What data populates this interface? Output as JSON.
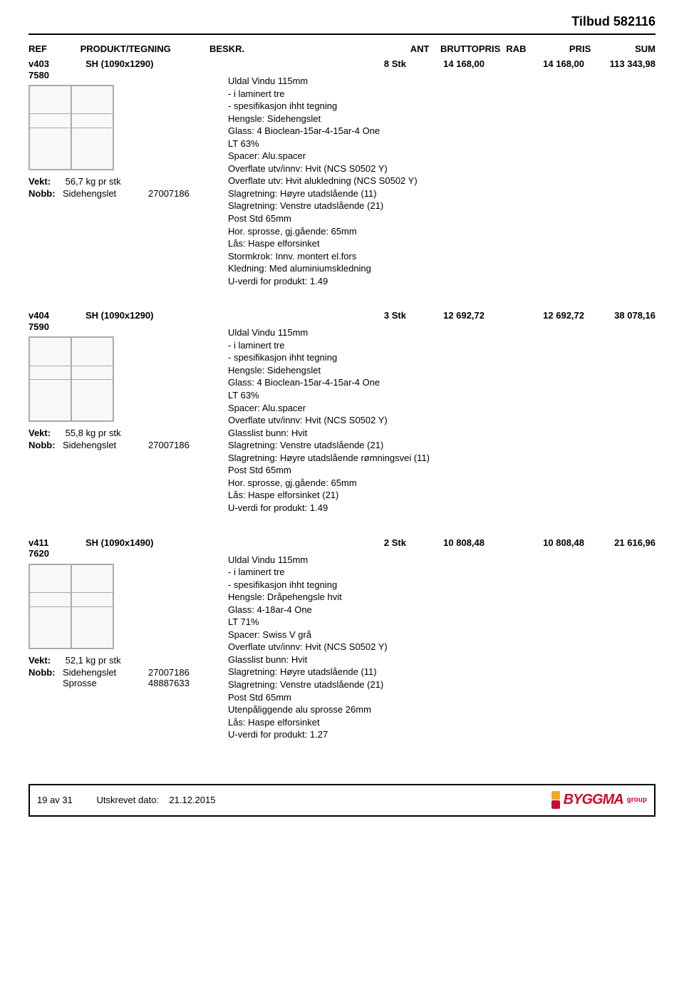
{
  "document": {
    "title": "Tilbud 582116"
  },
  "headers": {
    "ref": "REF",
    "prod": "PRODUKT/TEGNING",
    "beskr": "BESKR.",
    "ant": "ANT",
    "brutto": "BRUTTOPRIS",
    "rab": "RAB",
    "pris": "PRIS",
    "sum": "SUM"
  },
  "items": [
    {
      "ref1": "v403",
      "ref2": "7580",
      "title": "SH (1090x1290)",
      "vekt_label": "Vekt:",
      "vekt": "56,7 kg pr stk",
      "nobb_label": "Nobb:",
      "nobb": [
        {
          "name": "Sidehengslet",
          "code": "27007186"
        }
      ],
      "ant": "8 Stk",
      "brutto": "14 168,00",
      "rab": "",
      "pris": "14 168,00",
      "sum": "113 343,98",
      "specs": [
        "Uldal  Vindu 115mm",
        "- i laminert tre",
        "- spesifikasjon ihht tegning",
        "Hengsle: Sidehengslet",
        "Glass: 4 Bioclean-15ar-4-15ar-4 One",
        "LT 63%",
        "Spacer: Alu.spacer",
        "Overflate utv/innv: Hvit (NCS S0502 Y)",
        "Overflate utv: Hvit alukledning (NCS S0502 Y)",
        "Slagretning: Høyre utadslående (11)",
        "Slagretning: Venstre utadslående (21)",
        "Post Std 65mm",
        "Hor. sprosse, gj.gående: 65mm",
        "Lås: Haspe elforsinket",
        "Stormkrok: Innv. montert el.fors",
        "Kledning: Med aluminiumskledning",
        "U-verdi for produkt: 1.49"
      ]
    },
    {
      "ref1": "v404",
      "ref2": "7590",
      "title": "SH (1090x1290)",
      "vekt_label": "Vekt:",
      "vekt": "55,8 kg pr stk",
      "nobb_label": "Nobb:",
      "nobb": [
        {
          "name": "Sidehengslet",
          "code": "27007186"
        }
      ],
      "ant": "3 Stk",
      "brutto": "12 692,72",
      "rab": "",
      "pris": "12 692,72",
      "sum": "38 078,16",
      "specs": [
        "Uldal  Vindu 115mm",
        "- i laminert tre",
        "- spesifikasjon ihht tegning",
        "Hengsle: Sidehengslet",
        "Glass: 4 Bioclean-15ar-4-15ar-4 One",
        "LT 63%",
        "Spacer: Alu.spacer",
        "Overflate utv/innv: Hvit (NCS S0502 Y)",
        "Glasslist bunn: Hvit",
        "Slagretning: Venstre utadslående (21)",
        "Slagretning: Høyre utadslående rømningsvei (11)",
        "Post Std 65mm",
        "Hor. sprosse, gj.gående: 65mm",
        "Lås: Haspe elforsinket (21)",
        "U-verdi for produkt: 1.49"
      ]
    },
    {
      "ref1": "v411",
      "ref2": "7620",
      "title": "SH (1090x1490)",
      "vekt_label": "Vekt:",
      "vekt": "52,1 kg pr stk",
      "nobb_label": "Nobb:",
      "nobb": [
        {
          "name": "Sidehengslet",
          "code": "27007186"
        },
        {
          "name": "Sprosse",
          "code": "48887633"
        }
      ],
      "ant": "2 Stk",
      "brutto": "10 808,48",
      "rab": "",
      "pris": "10 808,48",
      "sum": "21 616,96",
      "specs": [
        "Uldal  Vindu 115mm",
        "- i laminert tre",
        "- spesifikasjon ihht tegning",
        "Hengsle: Dråpehengsle hvit",
        "Glass: 4-18ar-4 One",
        "LT 71%",
        "Spacer: Swiss V grå",
        "Overflate utv/innv: Hvit (NCS S0502 Y)",
        "Glasslist bunn: Hvit",
        "Slagretning: Høyre utadslående (11)",
        "Slagretning: Venstre utadslående (21)",
        "Post Std 65mm",
        "Utenpåliggende alu sprosse 26mm",
        "Lås: Haspe elforsinket",
        "U-verdi for produkt: 1.27"
      ]
    }
  ],
  "footer": {
    "page": "19 av 31",
    "date_label": "Utskrevet dato:",
    "date": "21.12.2015",
    "logo_text": "BYGGMA",
    "logo_sub": "group"
  },
  "colors": {
    "text": "#000000",
    "border": "#000000",
    "logo_red": "#c8102e",
    "logo_orange": "#f5a623",
    "bg": "#ffffff"
  }
}
